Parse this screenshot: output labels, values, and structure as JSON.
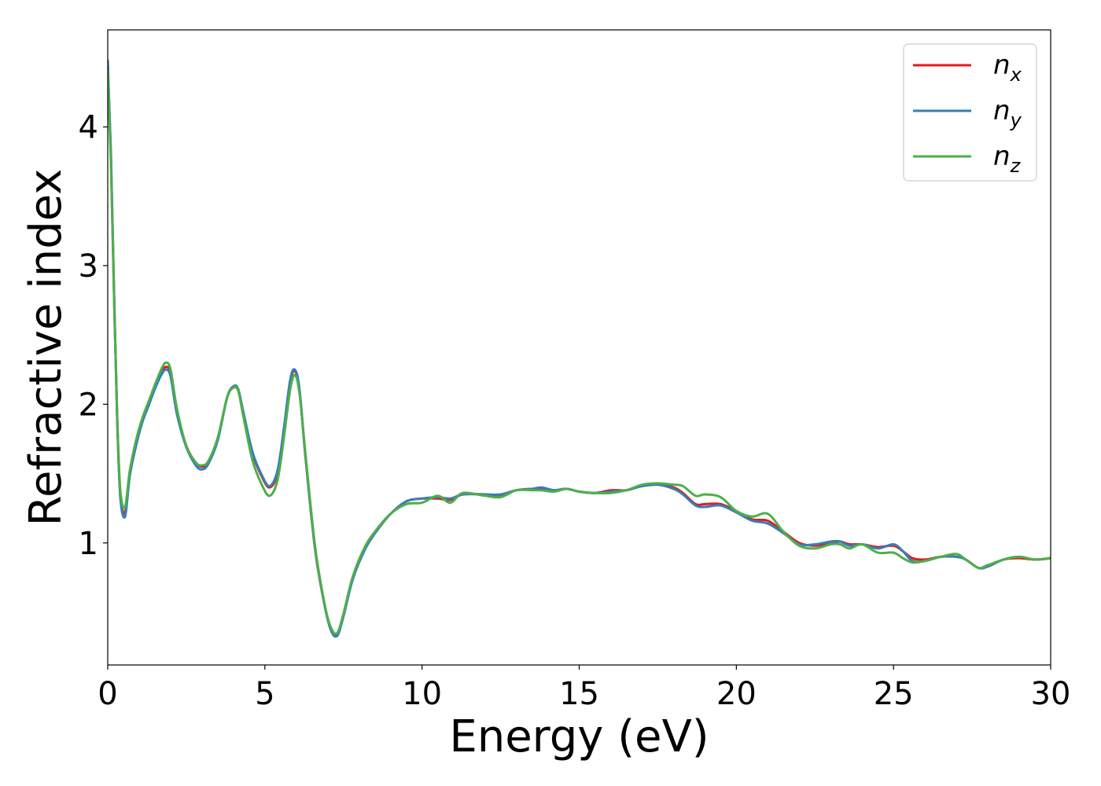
{
  "chart_data": {
    "type": "line",
    "title": "",
    "xlabel": "Energy (eV)",
    "ylabel": "Refractive index",
    "xlim": [
      0,
      30
    ],
    "ylim": [
      0.12,
      4.7
    ],
    "xticks": [
      0,
      5,
      10,
      15,
      20,
      25,
      30
    ],
    "yticks": [
      1,
      2,
      3,
      4
    ],
    "grid": false,
    "legend_position": "top-right",
    "series": [
      {
        "name": "n_x",
        "legend_base": "n",
        "legend_sub": "x",
        "color": "#e41a1c",
        "x": [
          0,
          0.1,
          0.2,
          0.3,
          0.4,
          0.55,
          0.7,
          0.9,
          1.1,
          1.3,
          1.5,
          1.7,
          1.85,
          2.0,
          2.2,
          2.5,
          2.8,
          3.0,
          3.2,
          3.5,
          3.8,
          4.0,
          4.15,
          4.3,
          4.6,
          4.9,
          5.15,
          5.4,
          5.6,
          5.8,
          5.95,
          6.1,
          6.3,
          6.6,
          6.9,
          7.1,
          7.3,
          7.5,
          7.8,
          8.2,
          8.6,
          9.0,
          9.5,
          10.0,
          10.5,
          10.9,
          11.3,
          12.0,
          12.5,
          13.0,
          13.5,
          13.8,
          14.2,
          14.6,
          15.0,
          15.5,
          16.0,
          16.5,
          17.0,
          17.5,
          18.0,
          18.3,
          18.7,
          19.0,
          19.5,
          20.0,
          20.5,
          21.0,
          21.5,
          22.0,
          22.5,
          23.0,
          23.3,
          23.6,
          24.0,
          24.5,
          25.0,
          25.3,
          25.6,
          26.0,
          26.5,
          27.0,
          27.3,
          27.7,
          28.0,
          28.5,
          29.0,
          29.5,
          30.0
        ],
        "y": [
          4.45,
          3.8,
          2.8,
          1.9,
          1.35,
          1.22,
          1.5,
          1.72,
          1.88,
          2.0,
          2.12,
          2.22,
          2.27,
          2.22,
          1.95,
          1.7,
          1.58,
          1.55,
          1.58,
          1.75,
          2.05,
          2.12,
          2.1,
          1.95,
          1.65,
          1.48,
          1.4,
          1.5,
          1.8,
          2.15,
          2.24,
          2.1,
          1.6,
          0.95,
          0.55,
          0.38,
          0.34,
          0.48,
          0.75,
          0.97,
          1.1,
          1.21,
          1.3,
          1.32,
          1.32,
          1.31,
          1.35,
          1.35,
          1.34,
          1.38,
          1.39,
          1.39,
          1.38,
          1.39,
          1.37,
          1.36,
          1.38,
          1.38,
          1.41,
          1.42,
          1.4,
          1.36,
          1.28,
          1.28,
          1.28,
          1.23,
          1.17,
          1.16,
          1.08,
          1.0,
          0.98,
          1.0,
          1.01,
          0.99,
          0.99,
          0.97,
          0.98,
          0.94,
          0.89,
          0.88,
          0.9,
          0.9,
          0.88,
          0.82,
          0.83,
          0.88,
          0.89,
          0.88,
          0.89
        ]
      },
      {
        "name": "n_y",
        "legend_base": "n",
        "legend_sub": "y",
        "color": "#377eb8",
        "x": [
          0,
          0.1,
          0.2,
          0.3,
          0.4,
          0.55,
          0.7,
          0.9,
          1.1,
          1.3,
          1.5,
          1.7,
          1.85,
          2.0,
          2.2,
          2.5,
          2.8,
          3.0,
          3.2,
          3.5,
          3.8,
          4.0,
          4.15,
          4.3,
          4.6,
          4.9,
          5.15,
          5.4,
          5.6,
          5.8,
          5.95,
          6.1,
          6.3,
          6.6,
          6.9,
          7.1,
          7.3,
          7.5,
          7.8,
          8.2,
          8.6,
          9.0,
          9.5,
          10.0,
          10.5,
          10.9,
          11.3,
          12.0,
          12.5,
          13.0,
          13.5,
          13.8,
          14.2,
          14.6,
          15.0,
          15.5,
          16.0,
          16.5,
          17.0,
          17.5,
          18.0,
          18.3,
          18.7,
          19.0,
          19.5,
          20.0,
          20.5,
          21.0,
          21.5,
          22.0,
          22.5,
          23.0,
          23.3,
          23.6,
          24.0,
          24.5,
          25.0,
          25.3,
          25.6,
          26.0,
          26.5,
          27.0,
          27.3,
          27.7,
          28.0,
          28.5,
          29.0,
          29.5,
          30.0
        ],
        "y": [
          4.48,
          3.82,
          2.82,
          1.9,
          1.33,
          1.19,
          1.48,
          1.7,
          1.87,
          1.99,
          2.11,
          2.21,
          2.25,
          2.2,
          1.93,
          1.69,
          1.56,
          1.53,
          1.57,
          1.74,
          2.05,
          2.13,
          2.11,
          1.96,
          1.66,
          1.49,
          1.41,
          1.52,
          1.82,
          2.17,
          2.25,
          2.11,
          1.6,
          0.95,
          0.55,
          0.37,
          0.33,
          0.47,
          0.74,
          0.96,
          1.1,
          1.21,
          1.3,
          1.32,
          1.33,
          1.32,
          1.35,
          1.35,
          1.35,
          1.38,
          1.39,
          1.4,
          1.38,
          1.39,
          1.37,
          1.36,
          1.37,
          1.38,
          1.41,
          1.42,
          1.39,
          1.35,
          1.27,
          1.26,
          1.27,
          1.22,
          1.16,
          1.14,
          1.07,
          0.99,
          0.99,
          1.01,
          1.01,
          0.98,
          0.99,
          0.96,
          0.99,
          0.94,
          0.87,
          0.87,
          0.9,
          0.9,
          0.88,
          0.82,
          0.83,
          0.88,
          0.9,
          0.88,
          0.89
        ]
      },
      {
        "name": "n_z",
        "legend_base": "n",
        "legend_sub": "z",
        "color": "#4daf4a",
        "x": [
          0,
          0.1,
          0.2,
          0.3,
          0.4,
          0.55,
          0.7,
          0.9,
          1.1,
          1.3,
          1.5,
          1.7,
          1.85,
          2.0,
          2.2,
          2.5,
          2.8,
          3.0,
          3.2,
          3.5,
          3.8,
          4.0,
          4.15,
          4.3,
          4.6,
          4.9,
          5.15,
          5.4,
          5.6,
          5.8,
          5.95,
          6.1,
          6.3,
          6.6,
          6.9,
          7.1,
          7.3,
          7.5,
          7.8,
          8.2,
          8.6,
          9.0,
          9.5,
          10.0,
          10.5,
          10.9,
          11.3,
          12.0,
          12.5,
          13.0,
          13.5,
          13.8,
          14.2,
          14.6,
          15.0,
          15.5,
          16.0,
          16.5,
          17.0,
          17.5,
          18.0,
          18.3,
          18.7,
          19.0,
          19.5,
          20.0,
          20.5,
          21.0,
          21.5,
          22.0,
          22.5,
          23.0,
          23.3,
          23.6,
          24.0,
          24.5,
          25.0,
          25.3,
          25.6,
          26.0,
          26.5,
          27.0,
          27.3,
          27.7,
          28.0,
          28.5,
          29.0,
          29.5,
          30.0
        ],
        "y": [
          4.4,
          3.75,
          2.78,
          1.92,
          1.38,
          1.26,
          1.52,
          1.74,
          1.9,
          2.02,
          2.14,
          2.25,
          2.3,
          2.25,
          1.97,
          1.7,
          1.58,
          1.56,
          1.59,
          1.76,
          2.05,
          2.12,
          2.1,
          1.93,
          1.6,
          1.42,
          1.34,
          1.45,
          1.75,
          2.1,
          2.21,
          2.08,
          1.62,
          0.97,
          0.56,
          0.39,
          0.35,
          0.49,
          0.76,
          0.98,
          1.11,
          1.21,
          1.28,
          1.29,
          1.34,
          1.29,
          1.36,
          1.34,
          1.33,
          1.38,
          1.38,
          1.38,
          1.37,
          1.39,
          1.37,
          1.36,
          1.36,
          1.38,
          1.42,
          1.43,
          1.42,
          1.41,
          1.34,
          1.35,
          1.33,
          1.23,
          1.19,
          1.21,
          1.08,
          0.98,
          0.96,
          0.99,
          0.99,
          0.96,
          0.99,
          0.93,
          0.93,
          0.89,
          0.86,
          0.87,
          0.9,
          0.92,
          0.88,
          0.82,
          0.84,
          0.88,
          0.9,
          0.88,
          0.89
        ]
      }
    ]
  }
}
